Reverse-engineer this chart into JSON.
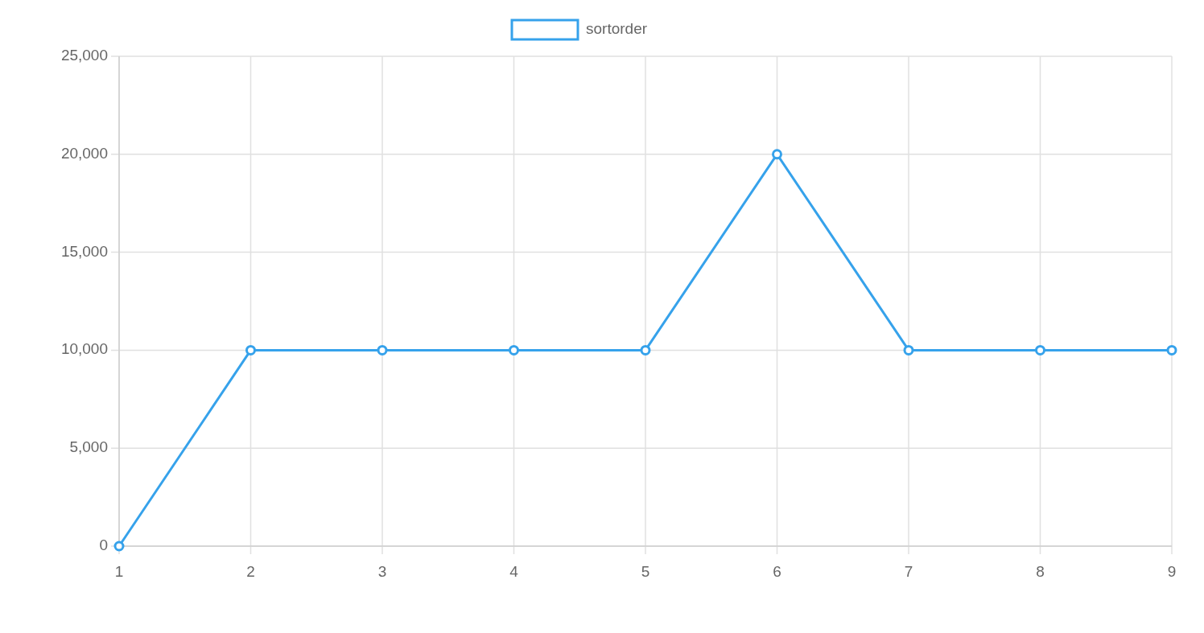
{
  "chart_data": {
    "type": "line",
    "categories": [
      "1",
      "2",
      "3",
      "4",
      "5",
      "6",
      "7",
      "8",
      "9"
    ],
    "series": [
      {
        "name": "sortorder",
        "color": "#36a2eb",
        "values": [
          0,
          10000,
          10000,
          10000,
          10000,
          20000,
          10000,
          10000,
          10000
        ]
      }
    ],
    "ylim": [
      0,
      25000
    ],
    "yticks": [
      {
        "value": 0,
        "label": "0"
      },
      {
        "value": 5000,
        "label": "5,000"
      },
      {
        "value": 10000,
        "label": "10,000"
      },
      {
        "value": 15000,
        "label": "15,000"
      },
      {
        "value": 20000,
        "label": "20,000"
      },
      {
        "value": 25000,
        "label": "25,000"
      }
    ],
    "grid": true,
    "legend": "top",
    "marker": "circle"
  }
}
